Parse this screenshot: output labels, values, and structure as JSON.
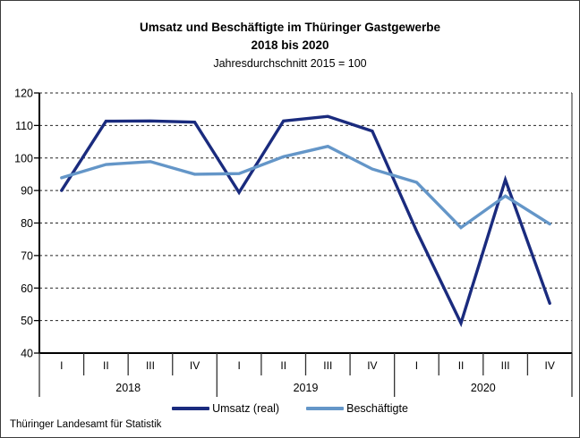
{
  "header": {
    "title_line1": "Umsatz und Beschäftigte im Thüringer Gastgewerbe",
    "title_line2": "2018 bis 2020",
    "subtitle": "Jahresdurchschnitt 2015 = 100"
  },
  "footer": {
    "source": "Thüringer Landesamt für Statistik"
  },
  "legend": [
    {
      "id": "umsatz",
      "label": "Umsatz (real)",
      "color": "#1A2B7E"
    },
    {
      "id": "beschaeftigte",
      "label": "Beschäftigte",
      "color": "#6496C8"
    }
  ],
  "chart_data": {
    "type": "line",
    "title": "Umsatz und Beschäftigte im Thüringer Gastgewerbe 2018 bis 2020",
    "subtitle": "Jahresdurchschnitt 2015 = 100",
    "years": [
      "2018",
      "2019",
      "2020"
    ],
    "quarters": [
      "I",
      "II",
      "III",
      "IV"
    ],
    "categories": [
      "2018-I",
      "2018-II",
      "2018-III",
      "2018-IV",
      "2019-I",
      "2019-II",
      "2019-III",
      "2019-IV",
      "2020-I",
      "2020-II",
      "2020-III",
      "2020-IV"
    ],
    "series": [
      {
        "id": "umsatz-line",
        "name": "Umsatz (real)",
        "color": "#1A2B7E",
        "values": [
          90.0,
          111.3,
          111.4,
          111.0,
          89.4,
          111.4,
          112.8,
          108.3,
          77.5,
          49.2,
          93.3,
          55.3
        ]
      },
      {
        "id": "beschaeftigte-line",
        "name": "Beschäftigte",
        "color": "#6496C8",
        "values": [
          93.9,
          98.0,
          98.9,
          95.0,
          95.2,
          100.4,
          103.6,
          96.6,
          92.5,
          78.6,
          88.3,
          79.7
        ]
      }
    ],
    "ylim": [
      40,
      120
    ],
    "yticks": [
      40,
      50,
      60,
      70,
      80,
      90,
      100,
      110,
      120
    ],
    "xlabel": "",
    "ylabel": "",
    "grid": "horizontal-dashed",
    "legend_position": "bottom"
  }
}
